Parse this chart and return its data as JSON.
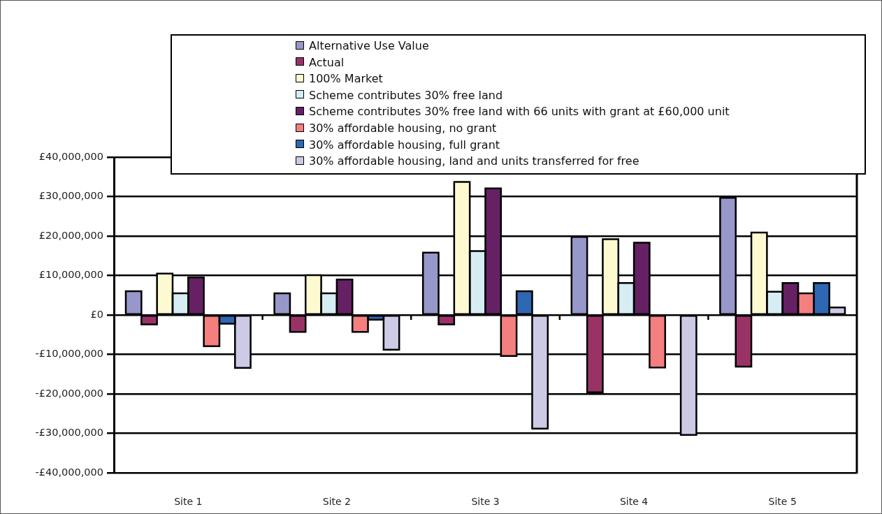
{
  "chart_data": {
    "type": "bar",
    "categories": [
      "Site 1",
      "Site 2",
      "Site 3",
      "Site 4",
      "Site 5"
    ],
    "series": [
      {
        "name": "Alternative Use Value",
        "color": "#9797c9",
        "values": [
          6000000,
          5500000,
          15800000,
          19800000,
          29700000
        ]
      },
      {
        "name": "Actual",
        "color": "#993366",
        "values": [
          -2400000,
          -4300000,
          -2400000,
          -19600000,
          -13100000
        ]
      },
      {
        "name": "100% Market",
        "color": "#fdfad2",
        "values": [
          10500000,
          10100000,
          33700000,
          19200000,
          20900000
        ]
      },
      {
        "name": "Scheme contributes 30% free land",
        "color": "#d5edf3",
        "values": [
          5500000,
          5500000,
          16200000,
          8100000,
          5900000
        ]
      },
      {
        "name": "Scheme contributes 30% free land with 66 units with grant at £60,000 unit",
        "color": "#652163",
        "values": [
          9500000,
          9000000,
          32100000,
          18300000,
          8100000
        ]
      },
      {
        "name": "30% affordable housing, no grant",
        "color": "#f47f7f",
        "values": [
          -7900000,
          -4300000,
          -10400000,
          -13300000,
          5500000
        ]
      },
      {
        "name": "30% affordable housing, full grant",
        "color": "#2e67b2",
        "values": [
          -2200000,
          -1200000,
          6000000,
          null,
          8100000
        ]
      },
      {
        "name": "30% affordable housing, land and units transferred for free",
        "color": "#cdcae6",
        "values": [
          -13400000,
          -8800000,
          -28800000,
          -30400000,
          1900000
        ]
      }
    ],
    "ylim": [
      -40000000,
      40000000
    ],
    "yticks": [
      {
        "value": -40000000,
        "label": "-£40,000,000"
      },
      {
        "value": -30000000,
        "label": "-£30,000,000"
      },
      {
        "value": -20000000,
        "label": "-£20,000,000"
      },
      {
        "value": -10000000,
        "label": "-£10,000,000"
      },
      {
        "value": 0,
        "label": "£0"
      },
      {
        "value": 10000000,
        "label": "£10,000,000"
      },
      {
        "value": 20000000,
        "label": "£20,000,000"
      },
      {
        "value": 30000000,
        "label": "£30,000,000"
      },
      {
        "value": 40000000,
        "label": "£40,000,000"
      }
    ],
    "grid": "y",
    "legend": "top"
  }
}
